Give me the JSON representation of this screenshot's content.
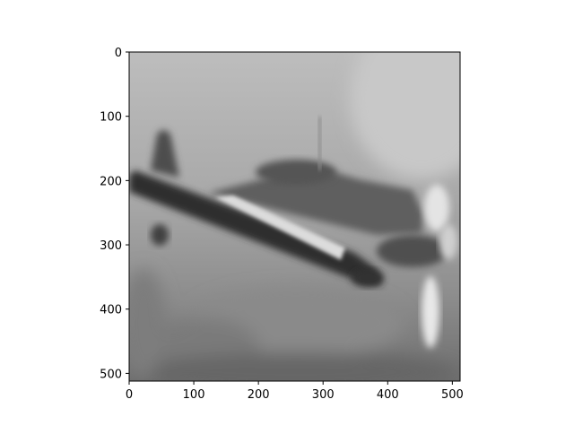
{
  "chart_data": {
    "type": "image",
    "title": "",
    "xlabel": "",
    "ylabel": "",
    "xlim": [
      0,
      512
    ],
    "ylim": [
      512,
      0
    ],
    "xticks": [
      0,
      100,
      200,
      300,
      400,
      500
    ],
    "yticks": [
      0,
      100,
      200,
      300,
      400,
      500
    ],
    "image_description": "blurred grayscale photo of a small propeller airplane flying diagonally across the frame",
    "colormap": "gray",
    "grid": false,
    "legend": "none"
  }
}
